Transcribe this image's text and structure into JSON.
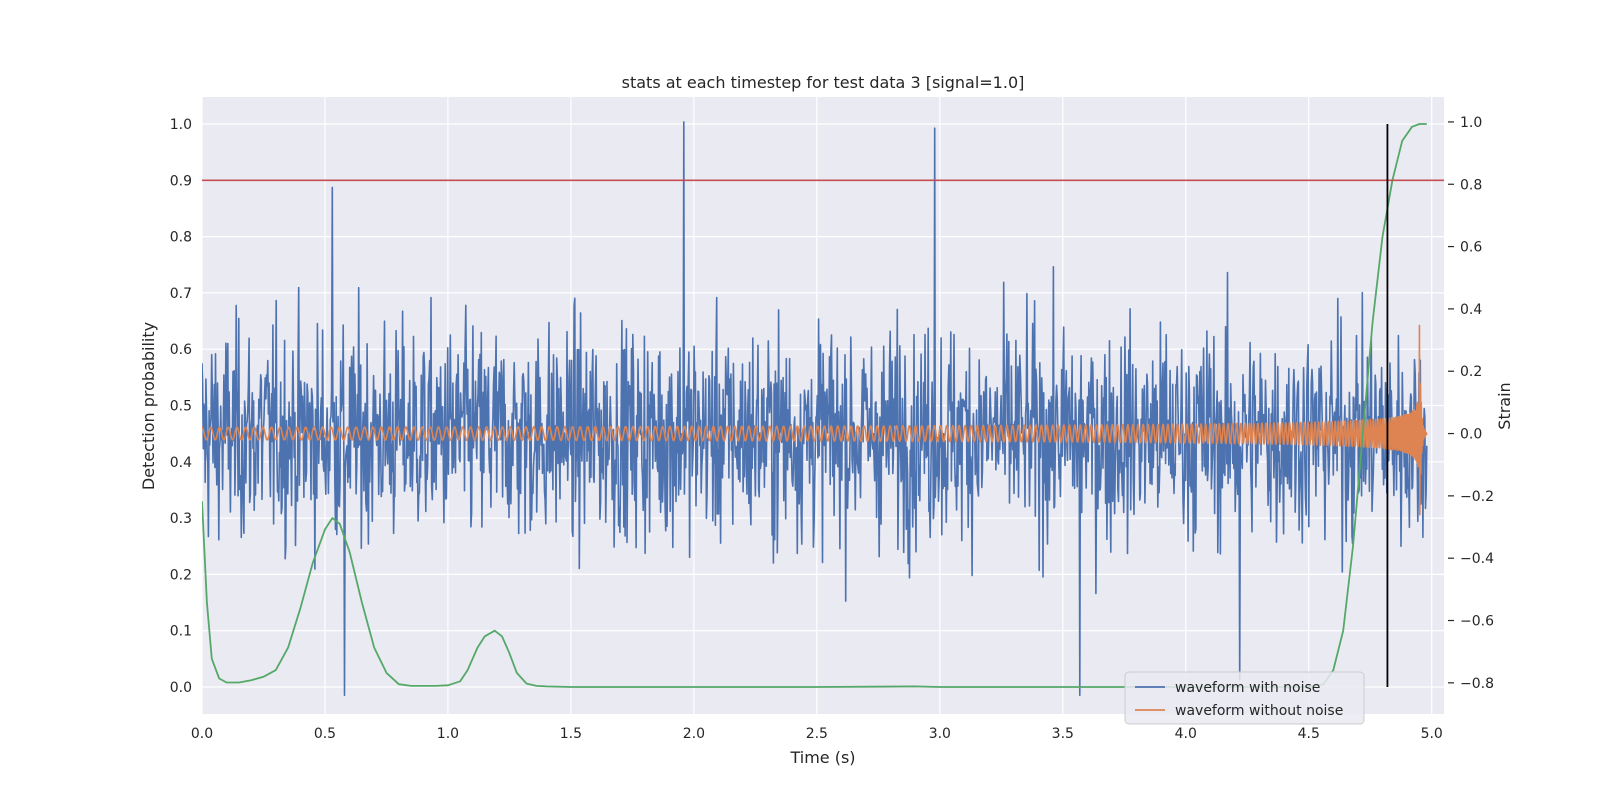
{
  "chart_data": {
    "type": "line",
    "title": "stats at each timestep for test data 3 [signal=1.0]",
    "xlabel": "Time (s)",
    "ylabel_left": "Detection probability",
    "ylabel_right": "Strain",
    "xlim": [
      0.0,
      5.05
    ],
    "ylim_left": [
      -0.048,
      1.048
    ],
    "ylim_right": [
      -0.9,
      1.08
    ],
    "x_ticks": [
      "0.0",
      "0.5",
      "1.0",
      "1.5",
      "2.0",
      "2.5",
      "3.0",
      "3.5",
      "4.0",
      "4.5",
      "5.0"
    ],
    "y_ticks_left": [
      "0.0",
      "0.1",
      "0.2",
      "0.3",
      "0.4",
      "0.5",
      "0.6",
      "0.7",
      "0.8",
      "0.9",
      "1.0"
    ],
    "y_ticks_right": [
      "−0.8",
      "−0.6",
      "−0.4",
      "−0.2",
      "0.0",
      "0.2",
      "0.4",
      "0.6",
      "0.8",
      "1.0"
    ],
    "grid": true,
    "legend_position": "bottom-right",
    "threshold_line": {
      "y": 0.9,
      "axis": "left",
      "color": "#c44e52"
    },
    "marker_line": {
      "x": 4.82,
      "y_range": [
        0.0,
        1.0
      ],
      "axis": "left",
      "color": "#000000"
    },
    "series": [
      {
        "name": "waveform with noise",
        "axis": "right",
        "color": "#4c72b0",
        "kind": "noise",
        "x_range": [
          0.0,
          4.98
        ],
        "y_range": [
          -0.84,
          1.0
        ],
        "sample_peaks": [
          {
            "x": 0.53,
            "y": 0.79
          },
          {
            "x": 1.96,
            "y": 1.0
          },
          {
            "x": 2.98,
            "y": 0.98
          },
          {
            "x": 0.58,
            "y": -0.84
          },
          {
            "x": 3.57,
            "y": -0.84
          },
          {
            "x": 4.22,
            "y": -0.79
          }
        ]
      },
      {
        "name": "waveform without noise",
        "axis": "right",
        "color": "#dd8452",
        "kind": "chirp",
        "x_range": [
          0.0,
          4.98
        ],
        "merger_time": 4.95,
        "start_amplitude": 0.02,
        "peak_amplitude": 0.36
      },
      {
        "name": "",
        "axis": "left",
        "color": "#55a868",
        "kind": "probability",
        "x": [
          0.0,
          0.02,
          0.04,
          0.07,
          0.1,
          0.15,
          0.2,
          0.25,
          0.3,
          0.35,
          0.4,
          0.45,
          0.5,
          0.53,
          0.56,
          0.6,
          0.65,
          0.7,
          0.75,
          0.8,
          0.85,
          0.9,
          0.95,
          1.0,
          1.05,
          1.08,
          1.12,
          1.15,
          1.19,
          1.22,
          1.25,
          1.28,
          1.32,
          1.36,
          1.4,
          1.5,
          2.0,
          2.5,
          2.9,
          3.0,
          3.5,
          4.0,
          4.5,
          4.56,
          4.6,
          4.64,
          4.68,
          4.72,
          4.76,
          4.8,
          4.84,
          4.88,
          4.92,
          4.95,
          4.98
        ],
        "y": [
          0.33,
          0.15,
          0.05,
          0.015,
          0.008,
          0.008,
          0.012,
          0.018,
          0.03,
          0.07,
          0.14,
          0.22,
          0.28,
          0.3,
          0.29,
          0.24,
          0.15,
          0.07,
          0.025,
          0.005,
          0.002,
          0.002,
          0.002,
          0.003,
          0.01,
          0.03,
          0.07,
          0.09,
          0.1,
          0.09,
          0.06,
          0.025,
          0.006,
          0.002,
          0.001,
          0.0,
          0.0,
          0.0,
          0.001,
          0.0,
          0.0,
          0.0,
          0.0,
          0.005,
          0.03,
          0.1,
          0.25,
          0.45,
          0.65,
          0.8,
          0.9,
          0.97,
          0.995,
          1.0,
          1.0
        ]
      }
    ],
    "colors": {
      "background": "#eaeaf2",
      "grid": "#ffffff"
    }
  }
}
